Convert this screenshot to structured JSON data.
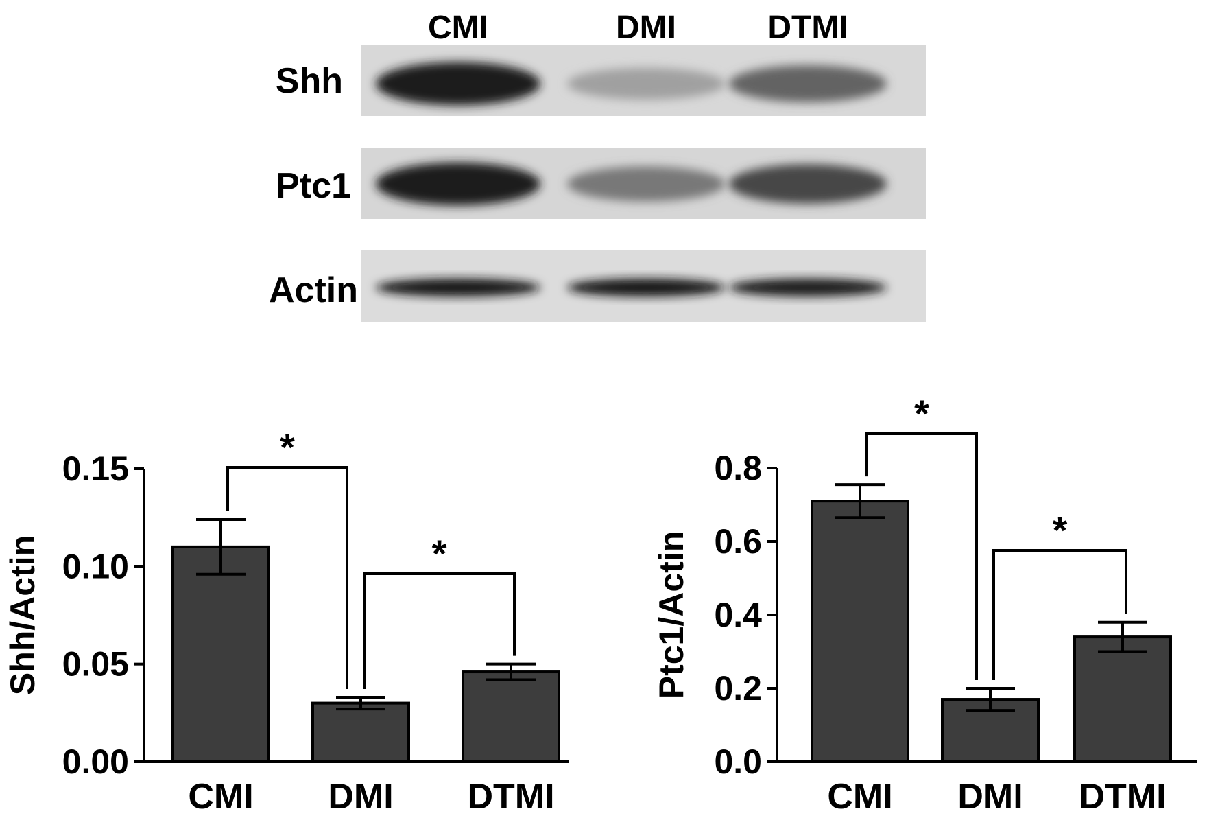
{
  "blot": {
    "lanes": [
      "CMI",
      "DMI",
      "DTMI"
    ],
    "rows": [
      {
        "label": "Shh",
        "intensities": [
          0.92,
          0.25,
          0.55
        ]
      },
      {
        "label": "Ptc1",
        "intensities": [
          0.9,
          0.45,
          0.7
        ]
      },
      {
        "label": "Actin",
        "intensities": [
          0.95,
          0.95,
          0.9
        ]
      }
    ]
  },
  "chart_data": [
    {
      "type": "bar",
      "categories": [
        "CMI",
        "DMI",
        "DTMI"
      ],
      "values": [
        0.11,
        0.03,
        0.046
      ],
      "errors": [
        0.014,
        0.003,
        0.004
      ],
      "ylabel": "Shh/Actin",
      "ylim": [
        0,
        0.15
      ],
      "yticks": [
        "0.00",
        "0.05",
        "0.10",
        "0.15"
      ],
      "significance": [
        {
          "from": "CMI",
          "to": "DMI",
          "label": "*"
        },
        {
          "from": "DMI",
          "to": "DTMI",
          "label": "*"
        }
      ],
      "bar_color": "#3d3d3d"
    },
    {
      "type": "bar",
      "categories": [
        "CMI",
        "DMI",
        "DTMI"
      ],
      "values": [
        0.71,
        0.17,
        0.34
      ],
      "errors": [
        0.045,
        0.03,
        0.04
      ],
      "ylabel": "Ptc1/Actin",
      "ylim": [
        0,
        0.8
      ],
      "yticks": [
        "0.0",
        "0.2",
        "0.4",
        "0.6",
        "0.8"
      ],
      "significance": [
        {
          "from": "CMI",
          "to": "DMI",
          "label": "*"
        },
        {
          "from": "DMI",
          "to": "DTMI",
          "label": "*"
        }
      ],
      "bar_color": "#3d3d3d"
    }
  ]
}
